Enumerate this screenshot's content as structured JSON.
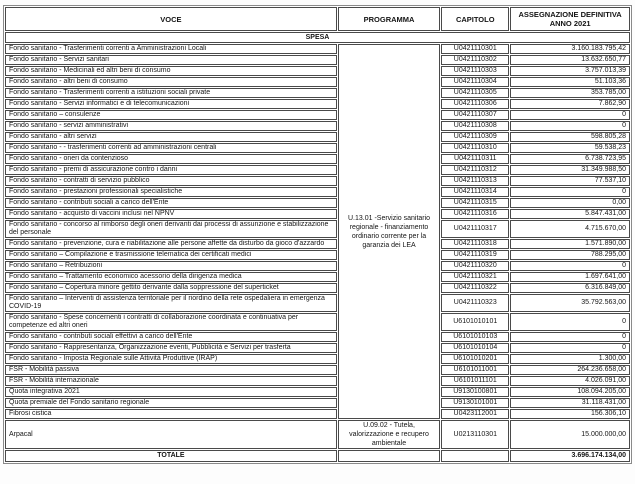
{
  "columns": [
    "VOCE",
    "PROGRAMMA",
    "CAPITOLO",
    "ASSEGNAZIONE DEFINITIVA ANNO 2021"
  ],
  "section_title": "SPESA",
  "programmi": [
    {
      "label": "U.13.01 -Servizio sanitario regionale - finanziamento ordinario corrente per la garanzia dei LEA",
      "span": 32
    },
    {
      "label": "U.09.02 - Tutela, valorizzazione e recupero ambientale",
      "span": 1
    }
  ],
  "rows": [
    {
      "voce": "Fondo sanitario - Trasferimenti correnti a Amministrazioni Locali",
      "capitolo": "U0421110301",
      "importo": "3.160.183.795,42",
      "group": 0
    },
    {
      "voce": "Fondo sanitario - Servizi sanitari",
      "capitolo": "U0421110302",
      "importo": "13.632.650,77",
      "group": 0
    },
    {
      "voce": "Fondo sanitario - Medicinali ed altri beni di consumo",
      "capitolo": "U0421110303",
      "importo": "3.757.013,39",
      "group": 0
    },
    {
      "voce": "Fondo sanitario - altri beni di consumo",
      "capitolo": "U0421110304",
      "importo": "51.103,36",
      "group": 0
    },
    {
      "voce": "Fondo sanitario - Trasferimenti correnti a istituzioni sociali private",
      "capitolo": "U0421110305",
      "importo": "353.785,00",
      "group": 0
    },
    {
      "voce": "Fondo sanitario - Servizi informatici e di telecomunicazioni",
      "capitolo": "U0421110306",
      "importo": "7.862,90",
      "group": 0
    },
    {
      "voce": "Fondo sanitario – consulenze",
      "capitolo": "U0421110307",
      "importo": "0",
      "group": 0
    },
    {
      "voce": "Fondo sanitario - servizi amministrativi",
      "capitolo": "U0421110308",
      "importo": "0",
      "group": 0
    },
    {
      "voce": "Fondo sanitario - altri servizi",
      "capitolo": "U0421110309",
      "importo": "598.805,28",
      "group": 0
    },
    {
      "voce": "Fondo sanitario - - trasferimenti correnti ad amministrazioni centrali",
      "capitolo": "U0421110310",
      "importo": "59.538,23",
      "group": 0
    },
    {
      "voce": "Fondo sanitario - oneri da contenzioso",
      "capitolo": "U0421110311",
      "importo": "6.738.723,95",
      "group": 0
    },
    {
      "voce": "Fondo sanitario - premi di assicurazione contro i danni",
      "capitolo": "U0421110312",
      "importo": "31.349.988,50",
      "group": 0
    },
    {
      "voce": "Fondo sanitario - contratti di servizio pubblico",
      "capitolo": "U0421110313",
      "importo": "77.537,10",
      "group": 0
    },
    {
      "voce": "Fondo sanitario - prestazioni professionali specialistiche",
      "capitolo": "U0421110314",
      "importo": "0",
      "group": 0
    },
    {
      "voce": "Fondo sanitario - contributi sociali a carico dell'Ente",
      "capitolo": "U0421110315",
      "importo": "0,00",
      "group": 0
    },
    {
      "voce": "Fondo sanitario - acquisto di vaccini inclusi nel NPNV",
      "capitolo": "U0421110316",
      "importo": "5.847.431,00",
      "group": 0
    },
    {
      "voce": "Fondo sanitario - concorso al rimborso degli oneri derivanti dai processi di assunzione e stabilizzazione del personale",
      "capitolo": "U0421110317",
      "importo": "4.715.670,00",
      "group": 0
    },
    {
      "voce": "Fondo sanitario - prevenzione, cura e riabilitazione alle persone affette da disturbo da gioco d'azzardo",
      "capitolo": "U0421110318",
      "importo": "1.571.890,00",
      "group": 0
    },
    {
      "voce": "Fondo sanitario – Compilazione e trasmissione telematica dei certificati medici",
      "capitolo": "U0421110319",
      "importo": "788.295,00",
      "group": 0
    },
    {
      "voce": "Fondo sanitario – Retribuzioni",
      "capitolo": "U0421110320",
      "importo": "0",
      "group": 0
    },
    {
      "voce": "Fondo sanitario – Trattamento economico acessorio della dirigenza medica",
      "capitolo": "U0421110321",
      "importo": "1.697.641,00",
      "group": 0
    },
    {
      "voce": "Fondo sanitario – Copertura minore gettito derivante dalla soppressione del superticket",
      "capitolo": "U0421110322",
      "importo": "6.316.849,00",
      "group": 0
    },
    {
      "voce": "Fondo sanitario – Interventi di assistenza territoriale per il riordino della rete ospedaliera in emergenza COVID-19",
      "capitolo": "U0421110323",
      "importo": "35.792.563,00",
      "group": 0
    },
    {
      "voce": "Fondo sanitario - Spese concernenti i contratti di collaborazione coordinata e continuativa per competenze ed altri oneri",
      "capitolo": "U6101010101",
      "importo": "0",
      "group": 0
    },
    {
      "voce": "Fondo sanitario - contributi sociali effettivi a carico dell'Ente",
      "capitolo": "U6101010103",
      "importo": "0",
      "group": 0
    },
    {
      "voce": "Fondo sanitario - Rappresentanza, Organizzazione eventi, Pubblicità e Servizi per trasferta",
      "capitolo": "U6101010104",
      "importo": "0",
      "group": 0
    },
    {
      "voce": "Fondo sanitario - Imposta Regionale sulle Attività Produttive (IRAP)",
      "capitolo": "U6101010201",
      "importo": "1.300,00",
      "group": 0
    },
    {
      "voce": "FSR - Mobilità passiva",
      "capitolo": "U6101011001",
      "importo": "264.236.658,00",
      "group": 0
    },
    {
      "voce": "FSR - Mobilità internazionale",
      "capitolo": "U6101011101",
      "importo": "4.026.091,00",
      "group": 0
    },
    {
      "voce": "Quota integrativa 2021",
      "capitolo": "U9130100801",
      "importo": "108.094.205,00",
      "group": 0
    },
    {
      "voce": "Quota premiale del Fondo sanitario regionale",
      "capitolo": "U9130101001",
      "importo": "31.118.431,00",
      "group": 0
    },
    {
      "voce": "Fibrosi cistica",
      "capitolo": "U0423112001",
      "importo": "156.306,10",
      "group": 0
    },
    {
      "voce": "Arpacal",
      "capitolo": "U0213110301",
      "importo": "15.000.000,00",
      "group": 1
    }
  ],
  "totale": {
    "label": "TOTALE",
    "importo": "3.696.174.134,00"
  }
}
